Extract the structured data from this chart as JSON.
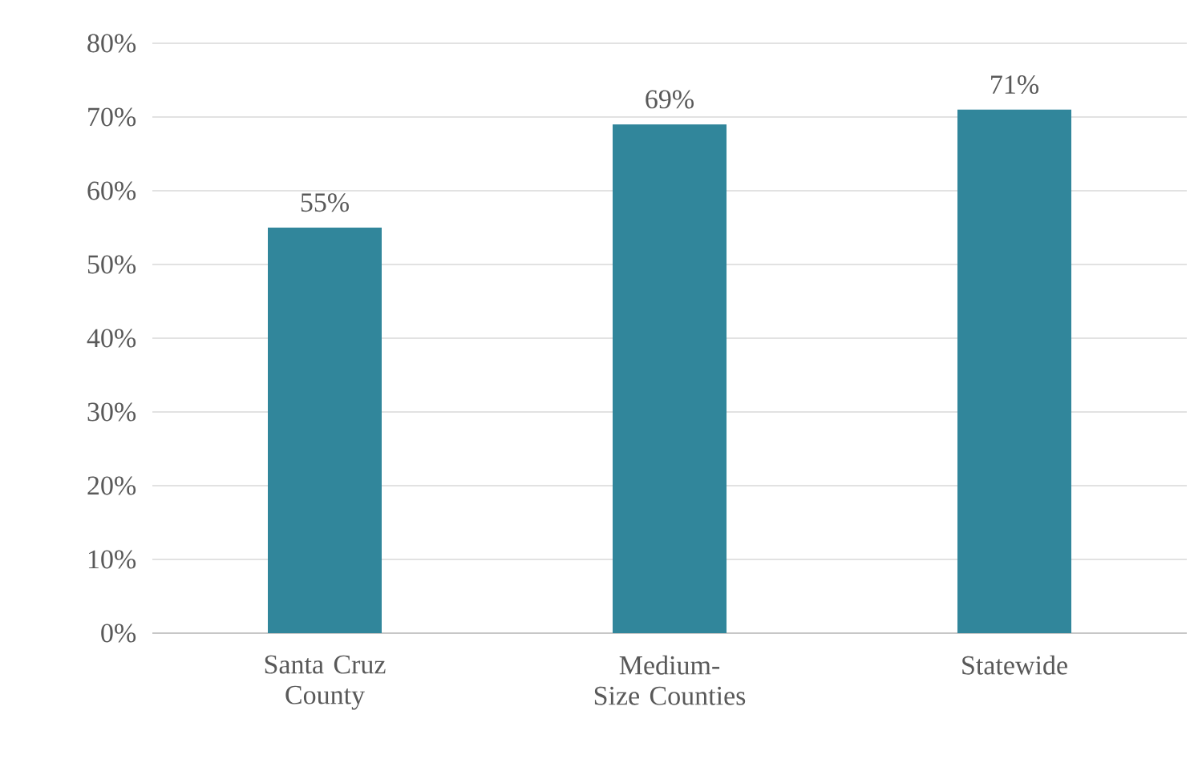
{
  "chart_data": {
    "type": "bar",
    "categories": [
      "Santa Cruz County",
      "Medium- Size Counties",
      "Statewide"
    ],
    "values": [
      55,
      69,
      71
    ],
    "value_labels": [
      "55%",
      "69%",
      "71%"
    ],
    "color": "#31869b",
    "ylim": [
      0,
      80
    ],
    "yticks": [
      {
        "value": 0,
        "label": "0%"
      },
      {
        "value": 10,
        "label": "10%"
      },
      {
        "value": 20,
        "label": "20%"
      },
      {
        "value": 30,
        "label": "30%"
      },
      {
        "value": 40,
        "label": "40%"
      },
      {
        "value": 50,
        "label": "50%"
      },
      {
        "value": 60,
        "label": "60%"
      },
      {
        "value": 70,
        "label": "70%"
      },
      {
        "value": 80,
        "label": "80%"
      }
    ],
    "grid": "y"
  }
}
